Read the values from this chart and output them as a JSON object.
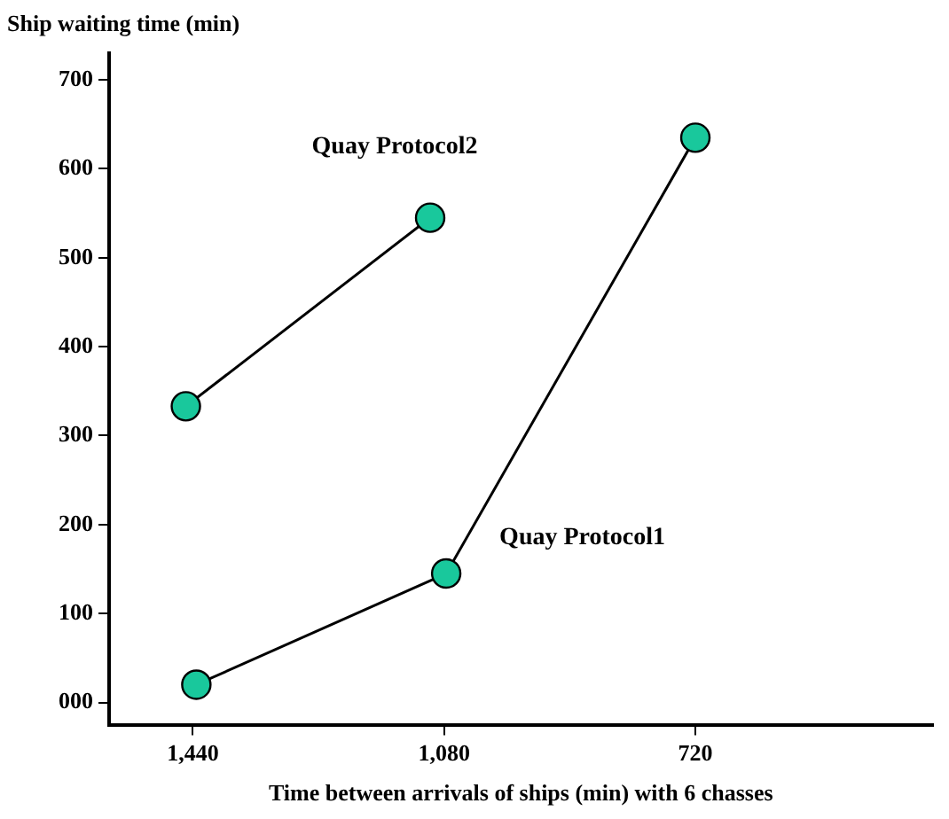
{
  "chart_data": {
    "type": "line",
    "ylabel": "Ship waiting time (min)",
    "xlabel": "Time between arrivals of ships (min) with 6 chasses",
    "xlim": [
      1560,
      380
    ],
    "xticks": [
      {
        "value": 1440,
        "label": "1,440"
      },
      {
        "value": 1080,
        "label": "1,080"
      },
      {
        "value": 720,
        "label": "720"
      }
    ],
    "ylim": [
      -25,
      730
    ],
    "yticks": [
      {
        "value": 0,
        "label": "000"
      },
      100,
      200,
      300,
      400,
      500,
      600,
      700
    ],
    "grid": false,
    "legend": false,
    "marker": "circle",
    "line_style": "solid",
    "series": [
      {
        "name": "Quay Protocol2",
        "color": "#19c89c",
        "x": [
          1450,
          1100
        ],
        "values": [
          333,
          545
        ]
      },
      {
        "name": "Quay Protocol1",
        "color": "#19c89c",
        "x": [
          1435,
          1077,
          720
        ],
        "values": [
          20,
          145,
          635
        ]
      }
    ]
  }
}
